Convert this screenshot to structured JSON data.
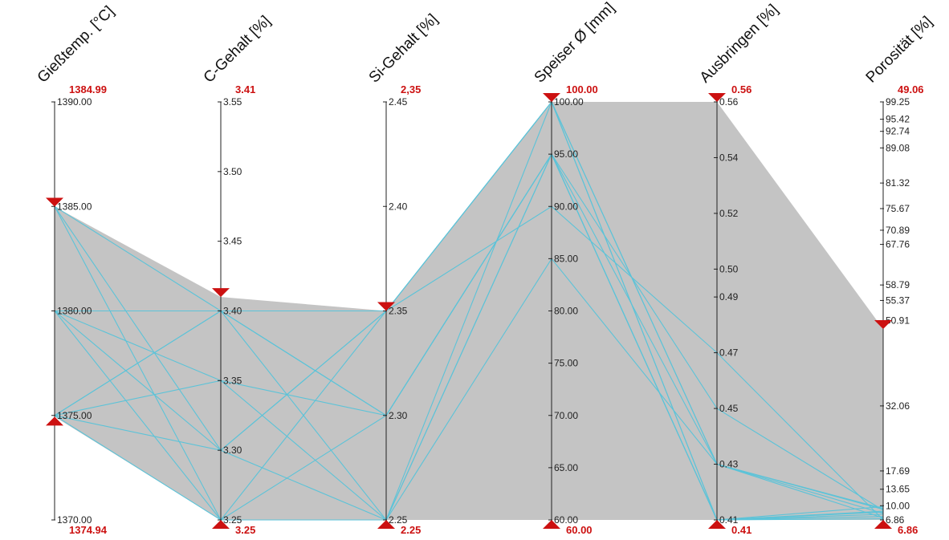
{
  "chart_data": {
    "type": "parallel-coordinates",
    "colors": {
      "band": "#c4c4c4",
      "line": "#5cc3d8",
      "axis": "#222222",
      "marker": "#cc1111",
      "range_text": "#cc1111"
    },
    "axes": [
      {
        "id": "giesstemp",
        "title": "Gießtemp. [°C]",
        "ticks": [
          "1390.00",
          "1385.00",
          "1380.00",
          "1375.00",
          "1370.00"
        ],
        "tick_values": [
          1390,
          1385,
          1380,
          1375,
          1370
        ],
        "min": 1370,
        "max": 1390,
        "range_top_label": "1384.99",
        "range_bottom_label": "1374.94",
        "range_top": 1384.99,
        "range_bottom": 1374.94
      },
      {
        "id": "c-gehalt",
        "title": "C-Gehalt [%]",
        "ticks": [
          "3.55",
          "3.50",
          "3.45",
          "3.40",
          "3.35",
          "3.30",
          "3.25"
        ],
        "tick_values": [
          3.55,
          3.5,
          3.45,
          3.4,
          3.35,
          3.3,
          3.25
        ],
        "min": 3.25,
        "max": 3.55,
        "range_top_label": "3.41",
        "range_bottom_label": "3.25",
        "range_top": 3.41,
        "range_bottom": 3.25
      },
      {
        "id": "si-gehalt",
        "title": "Si-Gehalt [%]",
        "ticks": [
          "2.45",
          "2.40",
          "2.35",
          "2.30",
          "2.25"
        ],
        "tick_values": [
          2.45,
          2.4,
          2.35,
          2.3,
          2.25
        ],
        "min": 2.25,
        "max": 2.45,
        "range_top_label": "2,35",
        "range_bottom_label": "2.25",
        "range_top": 2.35,
        "range_bottom": 2.25
      },
      {
        "id": "speiser",
        "title": "Speiser Ø [mm]",
        "ticks": [
          "100.00",
          "95.00",
          "90.00",
          "85.00",
          "80.00",
          "75.00",
          "70.00",
          "65.00",
          "60.00"
        ],
        "tick_values": [
          100,
          95,
          90,
          85,
          80,
          75,
          70,
          65,
          60
        ],
        "min": 60,
        "max": 100,
        "range_top_label": "100.00",
        "range_bottom_label": "60.00",
        "range_top": 100,
        "range_bottom": 60
      },
      {
        "id": "ausbringen",
        "title": "Ausbringen [%]",
        "ticks": [
          "0.56",
          "0.54",
          "0.52",
          "0.50",
          "0.49",
          "0.47",
          "0.45",
          "0.43",
          "0.41"
        ],
        "tick_values": [
          0.56,
          0.54,
          0.52,
          0.5,
          0.49,
          0.47,
          0.45,
          0.43,
          0.41
        ],
        "min": 0.41,
        "max": 0.56,
        "range_top_label": "0.56",
        "range_bottom_label": "0.41",
        "range_top": 0.56,
        "range_bottom": 0.41
      },
      {
        "id": "porositaet",
        "title": "Porosität [%]",
        "ticks": [
          "99.25",
          "95.42",
          "92.74",
          "89.08",
          "81.32",
          "75.67",
          "70.89",
          "67.76",
          "58.79",
          "55.37",
          "50.91",
          "32.06",
          "17.69",
          "13.65",
          "10.00",
          "6.86"
        ],
        "tick_values": [
          99.25,
          95.42,
          92.74,
          89.08,
          81.32,
          75.67,
          70.89,
          67.76,
          58.79,
          55.37,
          50.91,
          32.06,
          17.69,
          13.65,
          10.0,
          6.86
        ],
        "min": 6.86,
        "max": 99.25,
        "range_top_label": "49.06",
        "range_bottom_label": "6.86",
        "range_top": 49.06,
        "range_bottom": 6.86
      }
    ],
    "records": [
      [
        1385,
        3.25,
        2.25,
        95,
        0.43,
        9.2
      ],
      [
        1385,
        3.3,
        2.35,
        100,
        0.41,
        8.1
      ],
      [
        1385,
        3.4,
        2.3,
        95,
        0.41,
        7.6
      ],
      [
        1380,
        3.4,
        2.35,
        100,
        0.43,
        9.4
      ],
      [
        1380,
        3.35,
        2.25,
        95,
        0.41,
        8.6
      ],
      [
        1380,
        3.3,
        2.35,
        90,
        0.47,
        6.9
      ],
      [
        1375,
        3.4,
        2.25,
        100,
        0.43,
        7.3
      ],
      [
        1375,
        3.35,
        2.3,
        95,
        0.41,
        9.8
      ],
      [
        1375,
        3.3,
        2.25,
        85,
        0.43,
        8.3
      ],
      [
        1375,
        3.25,
        2.35,
        100,
        0.41,
        7.1
      ],
      [
        1375,
        3.4,
        2.3,
        95,
        0.45,
        9.0
      ],
      [
        1380,
        3.25,
        2.3,
        95,
        0.41,
        8.8
      ]
    ]
  }
}
